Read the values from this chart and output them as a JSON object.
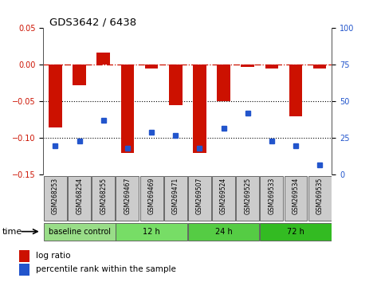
{
  "title": "GDS3642 / 6438",
  "samples": [
    "GSM268253",
    "GSM268254",
    "GSM268255",
    "GSM269467",
    "GSM269469",
    "GSM269471",
    "GSM269507",
    "GSM269524",
    "GSM269525",
    "GSM269533",
    "GSM269534",
    "GSM269535"
  ],
  "log_ratio": [
    -0.085,
    -0.028,
    0.017,
    -0.12,
    -0.005,
    -0.055,
    -0.12,
    -0.05,
    -0.003,
    -0.005,
    -0.07,
    -0.005
  ],
  "percentile_rank": [
    20,
    23,
    37,
    18,
    29,
    27,
    18,
    32,
    42,
    23,
    20,
    7
  ],
  "bar_color": "#cc1100",
  "dot_color": "#2255cc",
  "ylim_left": [
    -0.15,
    0.05
  ],
  "ylim_right": [
    0,
    100
  ],
  "yticks_left": [
    0.05,
    0.0,
    -0.05,
    -0.1,
    -0.15
  ],
  "yticks_right": [
    100,
    75,
    50,
    25,
    0
  ],
  "hline_zero_color": "#cc1100",
  "hline_dotted_color": "#000000",
  "groups": [
    {
      "label": "baseline control",
      "start": 0,
      "end": 3,
      "color": "#99dd88"
    },
    {
      "label": "12 h",
      "start": 3,
      "end": 6,
      "color": "#77dd66"
    },
    {
      "label": "24 h",
      "start": 6,
      "end": 9,
      "color": "#55cc44"
    },
    {
      "label": "72 h",
      "start": 9,
      "end": 12,
      "color": "#33bb22"
    }
  ],
  "xlabel_time": "time",
  "legend_log_ratio": "log ratio",
  "legend_percentile": "percentile rank within the sample",
  "background_color": "#ffffff",
  "plot_bg_color": "#ffffff",
  "sample_bg_color": "#cccccc",
  "border_color": "#555555"
}
